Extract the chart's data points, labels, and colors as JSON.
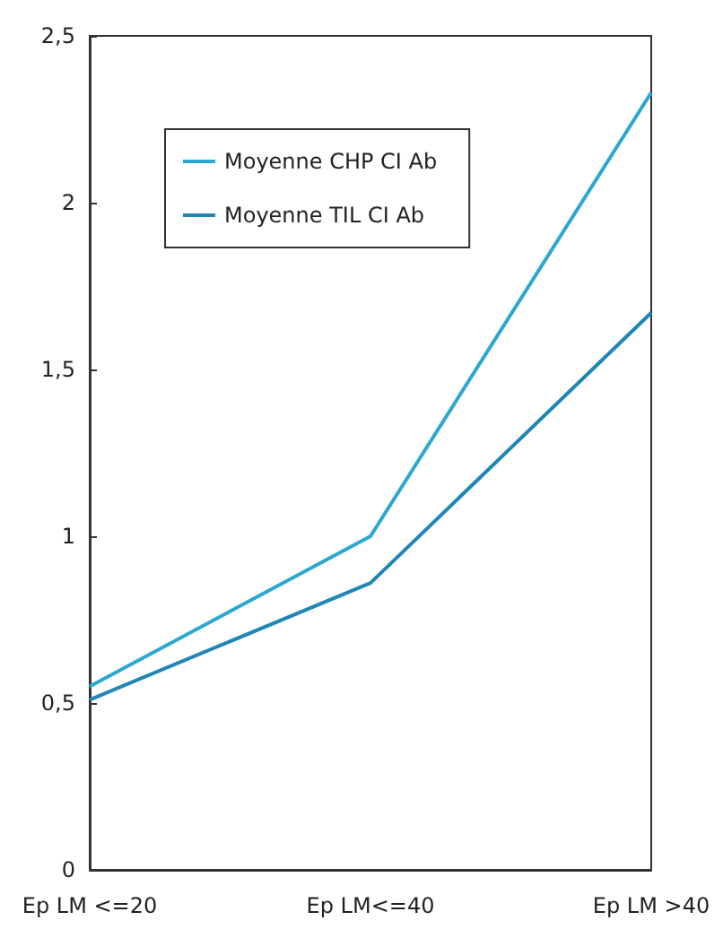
{
  "chart_data": {
    "type": "line",
    "categories": [
      "Ep LM <=20",
      "Ep LM<=40",
      "Ep LM >40"
    ],
    "series": [
      {
        "name": "Moyenne CHP CI Ab",
        "color": "#2ba8d0",
        "values": [
          0.55,
          1.0,
          2.33
        ]
      },
      {
        "name": "Moyenne TIL CI Ab",
        "color": "#1f86b5",
        "values": [
          0.51,
          0.86,
          1.67
        ]
      }
    ],
    "ylim": [
      0,
      2.5
    ],
    "yticks": [
      0,
      {
        "value": 0.5,
        "label": "0,5"
      },
      1,
      {
        "value": 1.5,
        "label": "1,5"
      },
      2,
      {
        "value": 2.5,
        "label": "2,5"
      }
    ],
    "grid": false,
    "legend": "top left",
    "marker": "none",
    "line_style": "solid"
  }
}
